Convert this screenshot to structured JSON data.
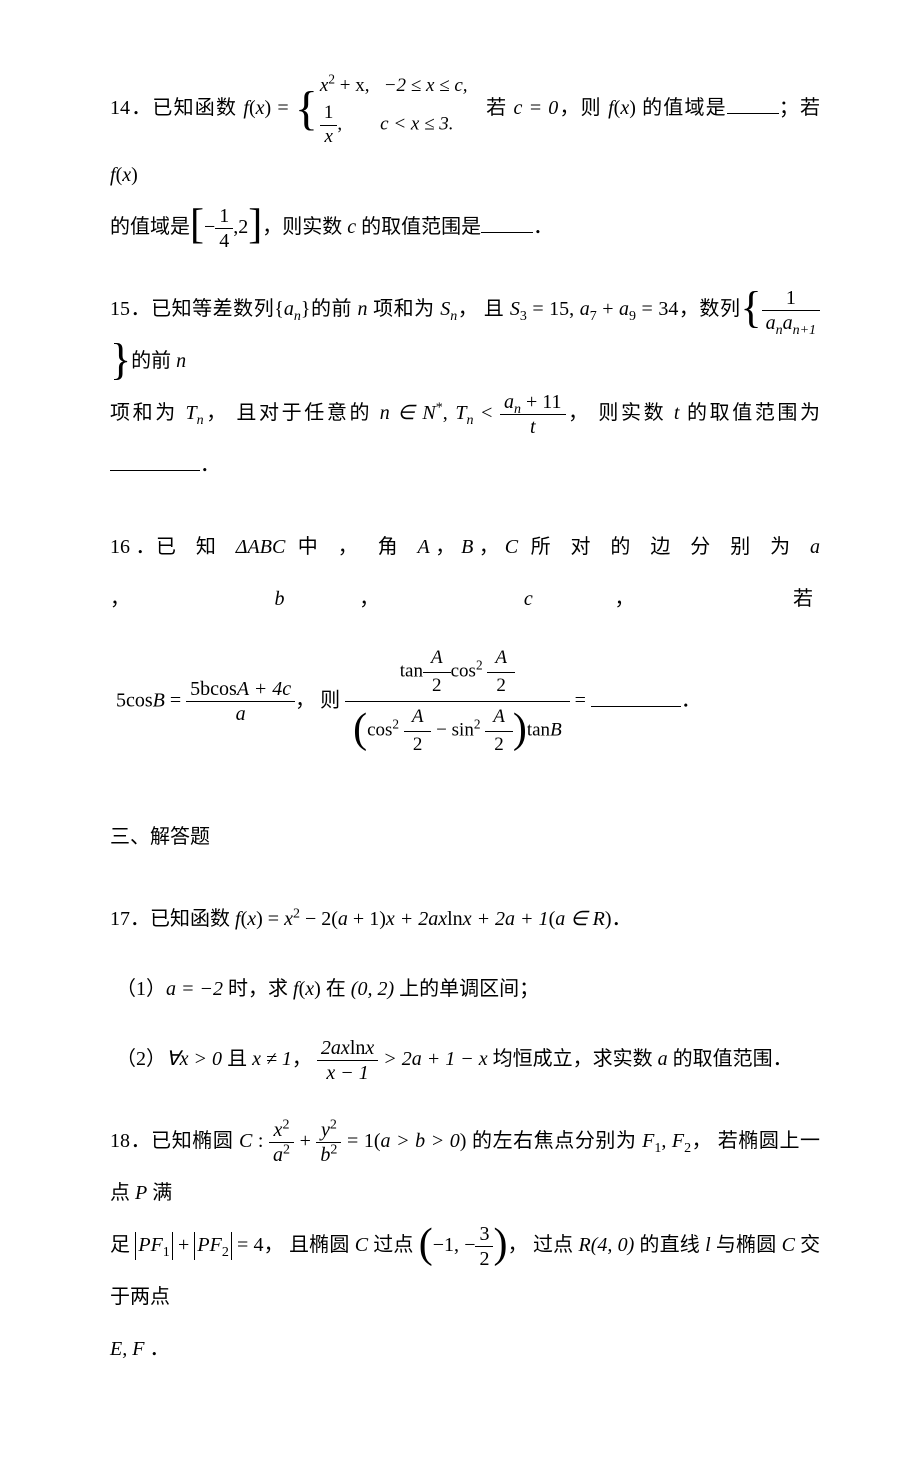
{
  "p14": {
    "num": "14．",
    "t1": "已知函数 ",
    "fx": "f",
    "paren_x": "x",
    "piece1_expr": "x",
    "piece1_exp": "2",
    "piece1_plus": " + x,",
    "piece1_cond": "−2 ≤ x ≤ c,",
    "piece2_num": "1",
    "piece2_den": "x",
    "piece2_comma": ",",
    "piece2_cond": "c < x ≤ 3.",
    "t2": "若 ",
    "c_eq": "c = 0",
    "t3": "，则 ",
    "t3b": " 的值域是",
    "t4": "；若 ",
    "t5": "的值域是",
    "range_lnum": "1",
    "range_lden": "4",
    "range_comma": ",",
    "range_right": "2",
    "t6": "，则实数 ",
    "c_var": "c",
    "t7": " 的取值范围是",
    "period": "．"
  },
  "p15": {
    "num": "15．",
    "t1": "已知等差数列",
    "seq": "a",
    "sub_n": "n",
    "t2": "的前 ",
    "n_it": "n",
    "t3": " 项和为 ",
    "Sn": "S",
    "t4": "， 且 ",
    "cond1": "S",
    "cond1_sub": "3",
    "cond1_eq": " = 15, ",
    "cond2a": "a",
    "cond2a_sub": "7",
    "cond2_plus": " + ",
    "cond2b": "a",
    "cond2b_sub": "9",
    "cond2_eq": " = 34",
    "t5": "，数列",
    "frac_num": "1",
    "frac_den_a1": "a",
    "frac_den_a2": "a",
    "frac_den_sub1": "n",
    "frac_den_sub2": "n+1",
    "t6": "的前 ",
    "t7": "项和为 ",
    "Tn": "T",
    "t8": "， 且对于任意的 ",
    "nN": "n ∈ N",
    "star": "*",
    "comma": ", ",
    "Tn2": "T",
    "lt": " < ",
    "rhs_num_a": "a",
    "rhs_num_sub": "n",
    "rhs_num_plus": " + 11",
    "rhs_den": "t",
    "t9": "， 则实数 ",
    "t_var": "t",
    "t10": " 的取值范围为",
    "period": "．"
  },
  "p16": {
    "num": "16 ．",
    "t1": "已 知 ",
    "tri": "ΔABC",
    "t2": " 中 ， 角 ",
    "A": "A",
    "t3": " ，   ",
    "B": "B",
    "t4": " ，   ",
    "C": "C",
    "t5": " 所 对 的 边 分 别 为 ",
    "a": "a",
    "t6": " ，   ",
    "b": "b",
    "t7": " ，   ",
    "c": "c",
    "t8": " ， 若",
    "lhs_5": "5",
    "lhs_cos": "cos",
    "lhs_B": "B",
    "lhs_eq": " = ",
    "lhs2_num_5b": "5b",
    "lhs2_num_cosA": "cos",
    "lhs2_num_A": "A",
    "lhs2_num_p4c": " + 4c",
    "lhs2_den": "a",
    "ze": "， 则 ",
    "big_eq": " = ",
    "rhs_num_tan": "tan",
    "rhs_num_A2_n": "A",
    "rhs_num_A2_d": "2",
    "rhs_num_cos2": "cos",
    "rhs_num_sq": "2",
    "rhs_den_cos2": "cos",
    "rhs_den_minus": " − ",
    "rhs_den_sin2": "sin",
    "rhs_den_tanB": "tan",
    "rhs_den_B": "B",
    "period": "．"
  },
  "section3": "三、解答题",
  "p17": {
    "num": "17．",
    "t1": "已知函数 ",
    "f": "f",
    "x": "x",
    "eq": " = ",
    "x2": "x",
    "exp2": "2",
    "m": " − 2",
    "ap1_l": "(",
    "a": "a",
    "ap1_p1": " + 1",
    "ap1_r": ")",
    "xp": "x + 2ax",
    "ln": "ln",
    "xp2": "x + 2a + 1",
    "aR_l": "(",
    "aR": "a ∈ R",
    "aR_r": ")",
    "period": "．",
    "s1_label": "（1）",
    "s1_a": "a = −2",
    "s1_t1": " 时，求 ",
    "s1_t2": " 在 ",
    "s1_open": "(0, 2)",
    "s1_t3": " 上的单调区间；",
    "s2_label": "（2）",
    "s2_forall": "∀x > 0",
    "s2_and": " 且 ",
    "s2_xne1": "x ≠ 1",
    "s2_comma": "，  ",
    "s2_num_2ax": "2ax",
    "s2_num_ln": "ln",
    "s2_num_x": "x",
    "s2_den": "x − 1",
    "s2_gt": " > 2a + 1 − x",
    "s2_t1": " 均恒成立，求实数 ",
    "s2_t2": " 的取值范围．"
  },
  "p18": {
    "num": "18．",
    "t1": "已知椭圆 ",
    "C": "C",
    "colon": " : ",
    "fx_num": "x",
    "fx_exp": "2",
    "fa_den": "a",
    "fa_exp": "2",
    "plus": " + ",
    "fy_num": "y",
    "fy_exp": "2",
    "fb_den": "b",
    "fb_exp": "2",
    "eq1": " = 1",
    "cond_l": "(",
    "cond": "a > b > 0",
    "cond_r": ")",
    "t2": " 的左右焦点分别为 ",
    "F1": "F",
    "F1s": "1",
    "comma": ", ",
    "F2": "F",
    "F2s": "2",
    "t3": "，  若椭圆上一点 ",
    "P": "P",
    "t4": " 满",
    "t5": "足 ",
    "PF1": "PF",
    "PF1s": "1",
    "plus2": " + ",
    "PF2": "PF",
    "PF2s": "2",
    "eq4": " = 4",
    "t6": "， 且椭圆 ",
    "t7": " 过点 ",
    "pt_n1": "−1, −",
    "pt_3": "3",
    "pt_2": "2",
    "t8": "， 过点 ",
    "R": "R",
    "R40": "(4, 0)",
    "t9": " 的直线 ",
    "l": "l",
    "t10": " 与椭圆 ",
    "t11": " 交于两点",
    "EF": "E, F",
    "period": " ．"
  }
}
